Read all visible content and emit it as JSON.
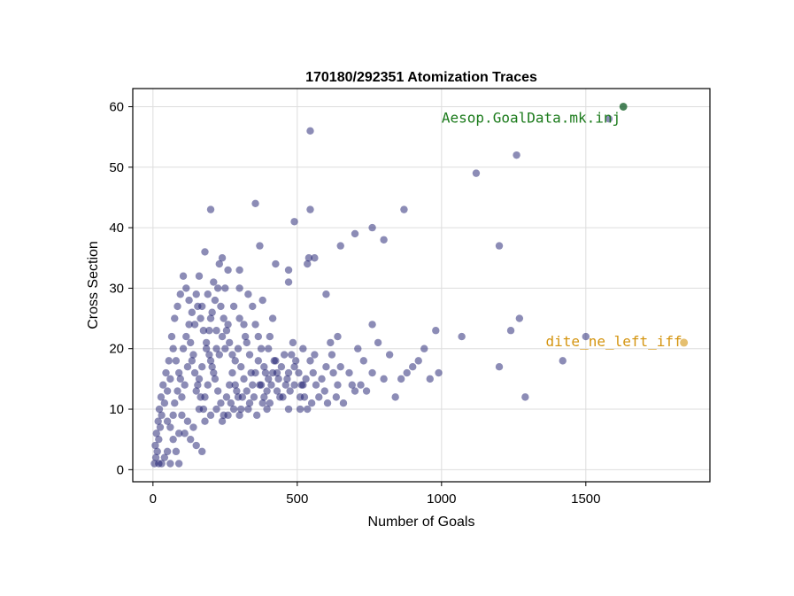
{
  "chart_data": {
    "type": "scatter",
    "title": "170180/292351 Atomization Traces",
    "xlabel": "Number of Goals",
    "ylabel": "Cross Section",
    "xlim": [
      -70,
      1930
    ],
    "ylim": [
      -2,
      63
    ],
    "xticks": [
      0,
      500,
      1000,
      1500
    ],
    "yticks": [
      0,
      10,
      20,
      30,
      40,
      50,
      60
    ],
    "grid": true,
    "legend": "none",
    "point_color": "#1a1a6e",
    "series": [
      {
        "points": [
          [
            545,
            56
          ],
          [
            1260,
            52
          ],
          [
            1120,
            49
          ],
          [
            870,
            43
          ],
          [
            545,
            43
          ],
          [
            200,
            43
          ],
          [
            355,
            44
          ],
          [
            490,
            41
          ],
          [
            760,
            40
          ],
          [
            700,
            39
          ],
          [
            650,
            37
          ],
          [
            800,
            38
          ],
          [
            1200,
            37
          ],
          [
            540,
            35
          ],
          [
            560,
            35
          ],
          [
            535,
            34
          ],
          [
            470,
            33
          ],
          [
            300,
            33
          ],
          [
            180,
            36
          ],
          [
            230,
            34
          ],
          [
            370,
            37
          ],
          [
            425,
            34
          ],
          [
            600,
            29
          ],
          [
            470,
            31
          ],
          [
            330,
            29
          ],
          [
            380,
            28
          ],
          [
            250,
            30
          ],
          [
            1500,
            22
          ],
          [
            1270,
            25
          ],
          [
            1240,
            23
          ],
          [
            1070,
            22
          ],
          [
            980,
            23
          ],
          [
            1420,
            18
          ],
          [
            1200,
            17
          ],
          [
            1290,
            12
          ],
          [
            900,
            17
          ],
          [
            860,
            15
          ],
          [
            800,
            15
          ],
          [
            760,
            16
          ],
          [
            720,
            14
          ],
          [
            700,
            13
          ],
          [
            680,
            16
          ],
          [
            640,
            14
          ],
          [
            600,
            17
          ],
          [
            560,
            19
          ],
          [
            520,
            20
          ],
          [
            480,
            19
          ],
          [
            460,
            14
          ],
          [
            440,
            12
          ],
          [
            420,
            18
          ],
          [
            400,
            20
          ],
          [
            760,
            24
          ],
          [
            780,
            21
          ],
          [
            710,
            20
          ],
          [
            640,
            22
          ],
          [
            620,
            19
          ],
          [
            650,
            17
          ],
          [
            550,
            11
          ],
          [
            510,
            12
          ],
          [
            490,
            17
          ],
          [
            520,
            14
          ],
          [
            470,
            10
          ],
          [
            430,
            13
          ],
          [
            400,
            15
          ],
          [
            380,
            11
          ],
          [
            360,
            9
          ],
          [
            340,
            16
          ],
          [
            320,
            22
          ],
          [
            300,
            25
          ],
          [
            280,
            27
          ],
          [
            260,
            24
          ],
          [
            240,
            22
          ],
          [
            230,
            19
          ],
          [
            220,
            20
          ],
          [
            210,
            16
          ],
          [
            200,
            18
          ],
          [
            190,
            14
          ],
          [
            180,
            12
          ],
          [
            170,
            17
          ],
          [
            160,
            15
          ],
          [
            150,
            13
          ],
          [
            140,
            19
          ],
          [
            130,
            21
          ],
          [
            120,
            17
          ],
          [
            110,
            14
          ],
          [
            100,
            12
          ],
          [
            90,
            16
          ],
          [
            80,
            18
          ],
          [
            70,
            20
          ],
          [
            60,
            15
          ],
          [
            50,
            13
          ],
          [
            40,
            11
          ],
          [
            30,
            9
          ],
          [
            25,
            7
          ],
          [
            20,
            5
          ],
          [
            15,
            3
          ],
          [
            10,
            2
          ],
          [
            5,
            1
          ],
          [
            8,
            4
          ],
          [
            12,
            6
          ],
          [
            18,
            8
          ],
          [
            22,
            10
          ],
          [
            28,
            12
          ],
          [
            35,
            14
          ],
          [
            45,
            16
          ],
          [
            55,
            18
          ],
          [
            65,
            22
          ],
          [
            75,
            25
          ],
          [
            85,
            27
          ],
          [
            95,
            29
          ],
          [
            105,
            32
          ],
          [
            115,
            30
          ],
          [
            125,
            28
          ],
          [
            135,
            26
          ],
          [
            145,
            24
          ],
          [
            155,
            27
          ],
          [
            165,
            25
          ],
          [
            175,
            23
          ],
          [
            185,
            21
          ],
          [
            195,
            19
          ],
          [
            205,
            17
          ],
          [
            215,
            15
          ],
          [
            225,
            13
          ],
          [
            235,
            11
          ],
          [
            245,
            9
          ],
          [
            255,
            12
          ],
          [
            265,
            14
          ],
          [
            275,
            16
          ],
          [
            285,
            18
          ],
          [
            295,
            20
          ],
          [
            305,
            17
          ],
          [
            315,
            15
          ],
          [
            325,
            13
          ],
          [
            335,
            11
          ],
          [
            345,
            14
          ],
          [
            355,
            16
          ],
          [
            365,
            18
          ],
          [
            375,
            20
          ],
          [
            385,
            17
          ],
          [
            395,
            13
          ],
          [
            405,
            11
          ],
          [
            415,
            16
          ],
          [
            425,
            18
          ],
          [
            435,
            15
          ],
          [
            445,
            17
          ],
          [
            455,
            19
          ],
          [
            465,
            15
          ],
          [
            475,
            13
          ],
          [
            485,
            21
          ],
          [
            495,
            18
          ],
          [
            505,
            16
          ],
          [
            515,
            14
          ],
          [
            525,
            12
          ],
          [
            535,
            10
          ],
          [
            545,
            18
          ],
          [
            555,
            16
          ],
          [
            565,
            14
          ],
          [
            575,
            12
          ],
          [
            585,
            15
          ],
          [
            595,
            13
          ],
          [
            605,
            11
          ],
          [
            615,
            21
          ],
          [
            625,
            16
          ],
          [
            635,
            12
          ],
          [
            660,
            11
          ],
          [
            690,
            14
          ],
          [
            730,
            18
          ],
          [
            740,
            13
          ],
          [
            820,
            19
          ],
          [
            840,
            12
          ],
          [
            880,
            16
          ],
          [
            920,
            18
          ],
          [
            940,
            20
          ],
          [
            960,
            15
          ],
          [
            990,
            16
          ],
          [
            100,
            9
          ],
          [
            120,
            8
          ],
          [
            140,
            7
          ],
          [
            160,
            10
          ],
          [
            180,
            8
          ],
          [
            200,
            9
          ],
          [
            220,
            10
          ],
          [
            240,
            8
          ],
          [
            260,
            9
          ],
          [
            280,
            10
          ],
          [
            300,
            9
          ],
          [
            60,
            7
          ],
          [
            70,
            5
          ],
          [
            80,
            3
          ],
          [
            90,
            1
          ],
          [
            40,
            2
          ],
          [
            50,
            3
          ],
          [
            60,
            1
          ],
          [
            30,
            1
          ],
          [
            20,
            1
          ],
          [
            110,
            6
          ],
          [
            130,
            5
          ],
          [
            150,
            4
          ],
          [
            170,
            3
          ],
          [
            70,
            9
          ],
          [
            90,
            6
          ],
          [
            50,
            8
          ],
          [
            75,
            11
          ],
          [
            85,
            13
          ],
          [
            95,
            15
          ],
          [
            105,
            20
          ],
          [
            115,
            22
          ],
          [
            125,
            24
          ],
          [
            135,
            18
          ],
          [
            145,
            16
          ],
          [
            155,
            14
          ],
          [
            165,
            12
          ],
          [
            175,
            10
          ],
          [
            185,
            20
          ],
          [
            195,
            23
          ],
          [
            205,
            26
          ],
          [
            215,
            28
          ],
          [
            225,
            30
          ],
          [
            235,
            27
          ],
          [
            245,
            25
          ],
          [
            255,
            23
          ],
          [
            265,
            21
          ],
          [
            275,
            19
          ],
          [
            285,
            14
          ],
          [
            295,
            12
          ],
          [
            305,
            10
          ],
          [
            315,
            24
          ],
          [
            325,
            21
          ],
          [
            335,
            19
          ],
          [
            345,
            27
          ],
          [
            355,
            24
          ],
          [
            365,
            22
          ],
          [
            375,
            14
          ],
          [
            385,
            12
          ],
          [
            395,
            10
          ],
          [
            405,
            22
          ],
          [
            415,
            25
          ],
          [
            300,
            30
          ],
          [
            260,
            33
          ],
          [
            240,
            35
          ],
          [
            210,
            31
          ],
          [
            190,
            29
          ],
          [
            160,
            32
          ],
          [
            150,
            29
          ],
          [
            170,
            27
          ],
          [
            200,
            25
          ],
          [
            220,
            23
          ],
          [
            250,
            20
          ],
          [
            270,
            11
          ],
          [
            290,
            13
          ],
          [
            310,
            12
          ],
          [
            330,
            10
          ],
          [
            350,
            12
          ],
          [
            370,
            14
          ],
          [
            390,
            16
          ],
          [
            410,
            14
          ],
          [
            430,
            16
          ],
          [
            450,
            12
          ],
          [
            470,
            16
          ],
          [
            490,
            14
          ],
          [
            510,
            10
          ],
          [
            530,
            15
          ],
          [
            1580,
            58
          ],
          [
            1630,
            60
          ]
        ]
      }
    ],
    "annotations": [
      {
        "text": "Aesop.GoalData.mk.inj",
        "x": 1630,
        "y": 60,
        "color": "#1a7a1a"
      },
      {
        "text": "dite_ne_left_iff",
        "x": 1840,
        "y": 21,
        "color": "#d4940f"
      }
    ]
  }
}
